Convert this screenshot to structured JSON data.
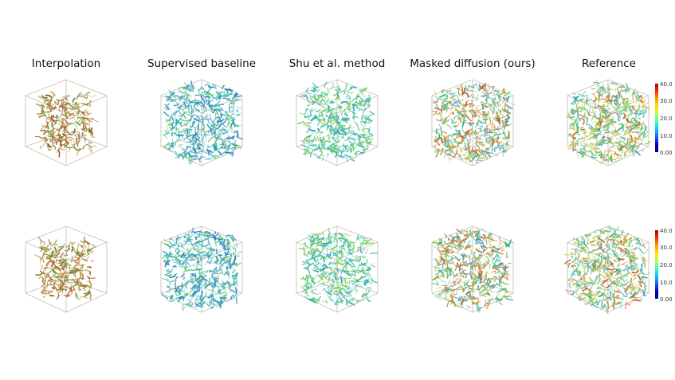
{
  "figure": {
    "columns": [
      {
        "title": "Interpolation",
        "palette": [
          "#6b8e2e",
          "#8a6a1e",
          "#a3521a",
          "#b84a12",
          "#7fa83a",
          "#9c7a2a",
          "#c4a24a"
        ],
        "density": 0.55,
        "coverage": 0.65
      },
      {
        "title": "Supervised baseline",
        "palette": [
          "#1fa7a0",
          "#2bb3a6",
          "#3aa0c0",
          "#1f86c8",
          "#5fc48a",
          "#6fcf6a",
          "#2a6fb6"
        ],
        "density": 1.0,
        "coverage": 0.9
      },
      {
        "title": "Shu et al. method",
        "palette": [
          "#2aab9a",
          "#3fbf8f",
          "#58c878",
          "#2f9ec8",
          "#7ccd5f",
          "#34b3b0",
          "#9bd35a"
        ],
        "density": 0.85,
        "coverage": 0.85
      },
      {
        "title": "Masked diffusion (ours)",
        "palette": [
          "#2aab9a",
          "#5cc07a",
          "#8cc84f",
          "#d07b24",
          "#b8552c",
          "#3a9fc4",
          "#e0a030"
        ],
        "density": 1.0,
        "coverage": 0.92
      },
      {
        "title": "Reference",
        "palette": [
          "#2aab9a",
          "#5cc07a",
          "#95cf50",
          "#e0a030",
          "#c85a28",
          "#3aa7c4",
          "#bcd64a"
        ],
        "density": 1.1,
        "coverage": 0.95
      }
    ],
    "rows": [
      {
        "colorbar_ticks": [
          "40.0",
          "30.0",
          "20.0",
          "10.0",
          "0.00"
        ]
      },
      {
        "colorbar_ticks": [
          "40.0",
          "30.0",
          "20.0",
          "10.0",
          "0.00"
        ]
      }
    ],
    "colorbar_colors": [
      "#00008c",
      "#1f5fff",
      "#00c8ff",
      "#43ffb3",
      "#ffe600",
      "#ff9a00",
      "#ff2a00",
      "#a50000"
    ]
  }
}
